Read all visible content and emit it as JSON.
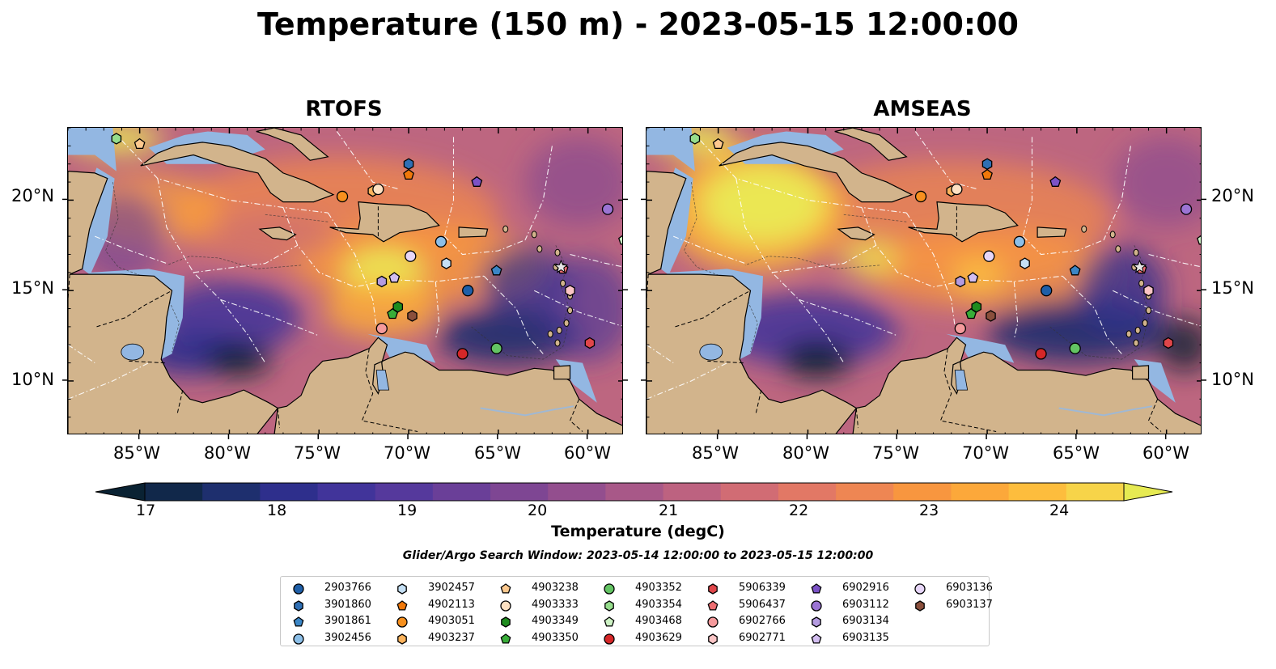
{
  "title": "Temperature (150 m) - 2023-05-15 12:00:00",
  "panels": [
    {
      "title": "RTOFS"
    },
    {
      "title": "AMSEAS"
    }
  ],
  "lon_ticks": [
    "85°W",
    "80°W",
    "75°W",
    "70°W",
    "65°W",
    "60°W"
  ],
  "lat_ticks": [
    "20°N",
    "15°N",
    "10°N"
  ],
  "colorbar": {
    "label": "Temperature (degC)",
    "ticks": [
      "17",
      "18",
      "19",
      "20",
      "21",
      "22",
      "23",
      "24"
    ],
    "colors": [
      "#0a2233",
      "#11284a",
      "#1e2f6e",
      "#2e2f8c",
      "#41349a",
      "#55399c",
      "#6a3f98",
      "#7e4693",
      "#934e8e",
      "#a85888",
      "#bd6280",
      "#d16c74",
      "#e27865",
      "#ee8653",
      "#f8963f",
      "#fca83a",
      "#fdbd3d",
      "#f7d449",
      "#e6ea52"
    ]
  },
  "search_window": "Glider/Argo Search Window: 2023-05-14 12:00:00 to 2023-05-15 12:00:00",
  "legend": [
    {
      "id": "2903766",
      "marker": "circle",
      "color": "#1f5fa8"
    },
    {
      "id": "3901860",
      "marker": "hexagon",
      "color": "#2f6fb4"
    },
    {
      "id": "3901861",
      "marker": "pentagon",
      "color": "#3b86c6"
    },
    {
      "id": "3902456",
      "marker": "circle",
      "color": "#8cbfe8"
    },
    {
      "id": "3902457",
      "marker": "hexagon",
      "color": "#c5e0f5"
    },
    {
      "id": "4902113",
      "marker": "pentagon",
      "color": "#f0780a"
    },
    {
      "id": "4903051",
      "marker": "circle",
      "color": "#f7901e"
    },
    {
      "id": "4903237",
      "marker": "hexagon",
      "color": "#fcb35c"
    },
    {
      "id": "4903238",
      "marker": "pentagon",
      "color": "#fdc98e"
    },
    {
      "id": "4903333",
      "marker": "circle",
      "color": "#fde1c2"
    },
    {
      "id": "4903349",
      "marker": "hexagon",
      "color": "#1e8c1e"
    },
    {
      "id": "4903350",
      "marker": "pentagon",
      "color": "#38ad38"
    },
    {
      "id": "4903352",
      "marker": "circle",
      "color": "#63c463"
    },
    {
      "id": "4903354",
      "marker": "hexagon",
      "color": "#96dd8c"
    },
    {
      "id": "4903468",
      "marker": "pentagon",
      "color": "#cdf2c4"
    },
    {
      "id": "4903629",
      "marker": "circle",
      "color": "#d62728"
    },
    {
      "id": "5906339",
      "marker": "hexagon",
      "color": "#e0464a"
    },
    {
      "id": "5906437",
      "marker": "pentagon",
      "color": "#ee6e72"
    },
    {
      "id": "6902766",
      "marker": "circle",
      "color": "#f59a9c"
    },
    {
      "id": "6902771",
      "marker": "hexagon",
      "color": "#fbc5c6"
    },
    {
      "id": "6902916",
      "marker": "pentagon",
      "color": "#7b52c6"
    },
    {
      "id": "6903112",
      "marker": "circle",
      "color": "#9b74d4"
    },
    {
      "id": "6903134",
      "marker": "hexagon",
      "color": "#b49be0"
    },
    {
      "id": "6903135",
      "marker": "pentagon",
      "color": "#d2bdf0"
    },
    {
      "id": "6903136",
      "marker": "circle",
      "color": "#e7d6f8"
    },
    {
      "id": "6903137",
      "marker": "hexagon",
      "color": "#8a4f3c"
    }
  ],
  "platforms": [
    {
      "id": "2903766",
      "lon": -66.7,
      "lat": 15.0
    },
    {
      "id": "3901860",
      "lon": -70.0,
      "lat": 22.0
    },
    {
      "id": "3901861",
      "lon": -65.1,
      "lat": 16.1
    },
    {
      "id": "3902456",
      "lon": -68.2,
      "lat": 17.7
    },
    {
      "id": "3902457",
      "lon": -67.9,
      "lat": 16.5
    },
    {
      "id": "4902113",
      "lon": -70.0,
      "lat": 21.4
    },
    {
      "id": "4903051",
      "lon": -73.7,
      "lat": 20.2
    },
    {
      "id": "4903237",
      "lon": -72.0,
      "lat": 20.5
    },
    {
      "id": "4903238",
      "lon": -85.0,
      "lat": 23.1
    },
    {
      "id": "4903333",
      "lon": -71.7,
      "lat": 20.6
    },
    {
      "id": "4903349",
      "lon": -70.6,
      "lat": 14.1
    },
    {
      "id": "4903350",
      "lon": -70.9,
      "lat": 13.7
    },
    {
      "id": "4903352",
      "lon": -65.1,
      "lat": 11.8
    },
    {
      "id": "4903354",
      "lon": -86.3,
      "lat": 23.4
    },
    {
      "id": "4903468",
      "lon": -58.0,
      "lat": 17.8
    },
    {
      "id": "4903629",
      "lon": -67.0,
      "lat": 11.5
    },
    {
      "id": "5906339",
      "lon": -59.9,
      "lat": 12.1
    },
    {
      "id": "5906437",
      "lon": -61.4,
      "lat": 16.2
    },
    {
      "id": "6902766",
      "lon": -71.5,
      "lat": 12.9
    },
    {
      "id": "6902771",
      "lon": -61.0,
      "lat": 15.0
    },
    {
      "id": "6902916",
      "lon": -66.2,
      "lat": 21.0
    },
    {
      "id": "6903112",
      "lon": -58.9,
      "lat": 19.5
    },
    {
      "id": "6903134",
      "lon": -71.5,
      "lat": 15.5
    },
    {
      "id": "6903135",
      "lon": -70.8,
      "lat": 15.7
    },
    {
      "id": "6903136",
      "lon": -69.9,
      "lat": 16.9
    },
    {
      "id": "6903137",
      "lon": -69.8,
      "lat": 13.6
    }
  ]
}
